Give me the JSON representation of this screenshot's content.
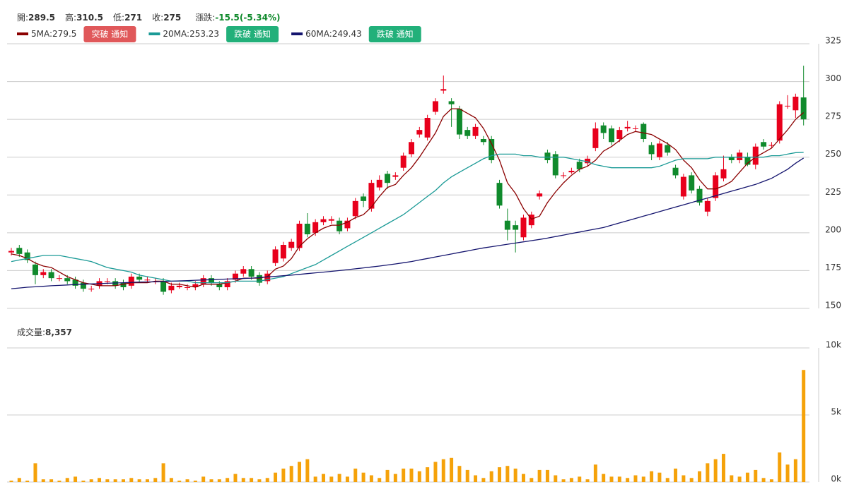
{
  "header": {
    "quote": [
      {
        "label": "開:",
        "value": 289.5
      },
      {
        "label": "高:",
        "value": 310.5
      },
      {
        "label": "低:",
        "value": 271
      },
      {
        "label": "收:",
        "value": 275
      }
    ],
    "change": {
      "label": "漲跌:",
      "text": "-15.5(-5.34%)"
    },
    "legend_sep": ":"
  },
  "chart_data": [
    {
      "type": "candlestick",
      "up_color": "#e8001c",
      "down_color": "#108a2c",
      "grid": true,
      "ylim": [
        150,
        325
      ],
      "yticks": [
        150,
        175,
        200,
        225,
        250,
        275,
        300,
        325
      ],
      "open": [
        187,
        190,
        187,
        179,
        172,
        174,
        170,
        170,
        169,
        167,
        163,
        165,
        168,
        168,
        167,
        165,
        171,
        169,
        168,
        168,
        162,
        164,
        164,
        164,
        166,
        170,
        166,
        164,
        169,
        173,
        176,
        172,
        168,
        180,
        183,
        190,
        190,
        206,
        200,
        207,
        208,
        208,
        203,
        211,
        224,
        216,
        230,
        239,
        237,
        243,
        252,
        265,
        263,
        280,
        294,
        287,
        282,
        268,
        264,
        262,
        262,
        233,
        208,
        205,
        197,
        205,
        224,
        253,
        252,
        238,
        240,
        247,
        246,
        256,
        271,
        269,
        262,
        269,
        269,
        272,
        258,
        250,
        258,
        243,
        224,
        238,
        229,
        214,
        223,
        236,
        250,
        248,
        250,
        245,
        260,
        258,
        261,
        284,
        281,
        289.5
      ],
      "high": [
        190,
        192,
        189,
        181,
        176,
        176,
        172,
        172,
        171,
        169,
        165,
        170,
        170,
        170,
        169,
        173,
        173,
        171,
        170,
        170,
        167,
        167,
        166,
        168,
        172,
        172,
        168,
        170,
        175,
        178,
        178,
        174,
        175,
        191,
        194,
        196,
        208,
        213,
        209,
        211,
        211,
        210,
        210,
        223,
        226,
        235,
        238,
        241,
        240,
        253,
        262,
        270,
        278,
        289,
        304,
        289,
        284,
        270,
        272,
        264,
        264,
        235,
        216,
        208,
        212,
        214,
        228,
        255,
        254,
        240,
        243,
        249,
        251,
        273,
        273,
        271,
        270,
        274,
        271,
        273,
        260,
        261,
        260,
        245,
        239,
        240,
        231,
        223,
        240,
        251,
        252,
        255,
        253,
        259,
        262,
        260,
        287,
        291,
        292,
        310.5
      ],
      "low": [
        185,
        184,
        180,
        166,
        170,
        168,
        168,
        166,
        163,
        161,
        161,
        163,
        166,
        163,
        162,
        163,
        167,
        167,
        166,
        159,
        160,
        163,
        162,
        162,
        164,
        165,
        162,
        162,
        167,
        171,
        169,
        165,
        166,
        178,
        181,
        188,
        188,
        197,
        198,
        205,
        206,
        199,
        201,
        209,
        217,
        214,
        228,
        229,
        235,
        241,
        250,
        263,
        261,
        278,
        292,
        270,
        262,
        262,
        262,
        258,
        246,
        216,
        195,
        187,
        195,
        203,
        222,
        246,
        236,
        236,
        239,
        240,
        244,
        254,
        262,
        258,
        260,
        267,
        267,
        260,
        248,
        248,
        251,
        236,
        222,
        226,
        218,
        211,
        221,
        234,
        246,
        246,
        244,
        242,
        255,
        256,
        259,
        282,
        276,
        271
      ],
      "close": [
        188,
        186,
        182,
        172,
        174,
        170,
        170,
        168,
        165,
        163,
        163,
        168,
        168,
        165,
        164,
        171,
        169,
        169,
        168,
        161,
        165,
        165,
        164,
        166,
        170,
        167,
        164,
        168,
        173,
        176,
        171,
        167,
        173,
        189,
        192,
        194,
        206,
        199,
        207,
        209,
        209,
        201,
        208,
        221,
        221,
        233,
        235,
        233,
        238,
        251,
        260,
        268,
        276,
        287,
        295,
        285,
        265,
        264,
        270,
        260,
        248,
        218,
        202,
        202,
        210,
        212,
        226,
        248,
        238,
        238,
        241,
        242,
        249,
        269,
        266,
        260,
        268,
        270,
        269,
        262,
        252,
        259,
        253,
        238,
        237,
        228,
        220,
        221,
        238,
        242,
        248,
        253,
        245,
        257,
        257,
        258,
        285,
        284,
        290,
        275
      ],
      "series": [
        {
          "name": "5MA",
          "last": 279.5,
          "color": "#8b0000",
          "button": "突破 通知",
          "button_color": "#e0585a",
          "values": [
            186,
            185,
            183,
            180,
            178,
            177,
            174,
            171,
            169,
            167,
            166,
            165,
            165,
            165,
            166,
            167,
            167,
            167,
            168,
            168,
            166,
            166,
            165,
            164,
            166,
            166,
            166,
            167,
            168,
            170,
            170,
            170,
            171,
            176,
            178,
            183,
            191,
            196,
            200,
            203,
            205,
            205,
            207,
            210,
            212,
            217,
            224,
            230,
            232,
            238,
            243,
            250,
            258,
            266,
            277,
            282,
            282,
            279,
            276,
            269,
            259,
            248,
            233,
            226,
            216,
            209,
            211,
            220,
            227,
            233,
            238,
            242,
            244,
            248,
            254,
            257,
            261,
            265,
            267,
            266,
            265,
            262,
            259,
            255,
            248,
            243,
            235,
            229,
            229,
            231,
            234,
            240,
            246,
            250,
            253,
            256,
            262,
            268,
            275,
            279.5
          ]
        },
        {
          "name": "20MA",
          "last": 253.23,
          "color": "#1a9a96",
          "button": "跌破 通知",
          "button_color": "#22b07a",
          "values": [
            181,
            182,
            183,
            184,
            185,
            185,
            185,
            184,
            183,
            182,
            181,
            179,
            177,
            176,
            175,
            174,
            172,
            171,
            170,
            169,
            168,
            168,
            168,
            167,
            167,
            167,
            167,
            167,
            168,
            168,
            168,
            168,
            169,
            170,
            171,
            173,
            175,
            177,
            179,
            182,
            185,
            188,
            191,
            194,
            197,
            200,
            203,
            206,
            209,
            212,
            216,
            220,
            224,
            228,
            233,
            237,
            240,
            243,
            246,
            249,
            251,
            252,
            252,
            252,
            251,
            251,
            250,
            250,
            250,
            250,
            249,
            248,
            247,
            245,
            244,
            243,
            243,
            243,
            243,
            243,
            243,
            244,
            246,
            248,
            249,
            249,
            249,
            249,
            250,
            250,
            250,
            250,
            250,
            250,
            250,
            251,
            251,
            252,
            253,
            253.23
          ]
        },
        {
          "name": "60MA",
          "last": 249.43,
          "color": "#14146e",
          "button": "跌破 通知",
          "button_color": "#22b07a",
          "values": [
            163,
            163.5,
            164,
            164.3,
            164.6,
            165,
            165.2,
            165.5,
            165.8,
            166,
            166.2,
            166.4,
            166.6,
            166.8,
            167,
            167.2,
            167.4,
            167.5,
            167.6,
            167.8,
            168,
            168.2,
            168.4,
            168.6,
            168.8,
            169,
            169.2,
            169.4,
            169.6,
            169.8,
            170,
            170.4,
            170.8,
            171.2,
            171.6,
            172,
            172.5,
            173,
            173.5,
            174,
            174.5,
            175,
            175.6,
            176.2,
            176.8,
            177.4,
            178,
            178.7,
            179.4,
            180.2,
            181,
            182,
            183,
            184,
            185,
            186,
            187,
            188,
            189,
            190,
            190.8,
            191.6,
            192.4,
            193.2,
            194,
            194.8,
            195.6,
            196.5,
            197.5,
            198.5,
            199.5,
            200.5,
            201.5,
            202.5,
            203.5,
            205,
            206.5,
            208,
            209.5,
            211,
            212.5,
            214,
            215.5,
            217,
            218.5,
            220,
            221.5,
            223,
            224.5,
            226,
            227.5,
            229,
            230.5,
            232,
            234,
            236,
            239,
            242,
            246,
            249.43
          ]
        }
      ]
    },
    {
      "type": "bar",
      "title": "成交量:",
      "last": {
        "value": 8357,
        "label": "8,357"
      },
      "color": "#f5a20a",
      "grid": true,
      "ylim": [
        0,
        10000
      ],
      "yticks": [
        {
          "value": 0,
          "label": "0k"
        },
        {
          "value": 5000,
          "label": "5k"
        },
        {
          "value": 10000,
          "label": "10k"
        }
      ],
      "values": [
        100,
        300,
        100,
        1400,
        200,
        200,
        100,
        300,
        400,
        100,
        200,
        300,
        200,
        200,
        200,
        300,
        200,
        200,
        300,
        1400,
        300,
        100,
        200,
        100,
        400,
        200,
        200,
        300,
        600,
        300,
        300,
        200,
        300,
        700,
        1000,
        1200,
        1500,
        1700,
        400,
        600,
        400,
        600,
        400,
        1000,
        700,
        500,
        300,
        900,
        600,
        1000,
        1000,
        800,
        1100,
        1500,
        1700,
        1800,
        1200,
        900,
        500,
        300,
        800,
        1100,
        1200,
        1000,
        600,
        300,
        900,
        900,
        500,
        200,
        300,
        400,
        200,
        1300,
        600,
        400,
        400,
        300,
        500,
        400,
        800,
        700,
        300,
        1000,
        500,
        300,
        800,
        1400,
        1700,
        2100,
        500,
        400,
        700,
        900,
        300,
        200,
        2200,
        1300,
        1700,
        8357
      ]
    }
  ]
}
